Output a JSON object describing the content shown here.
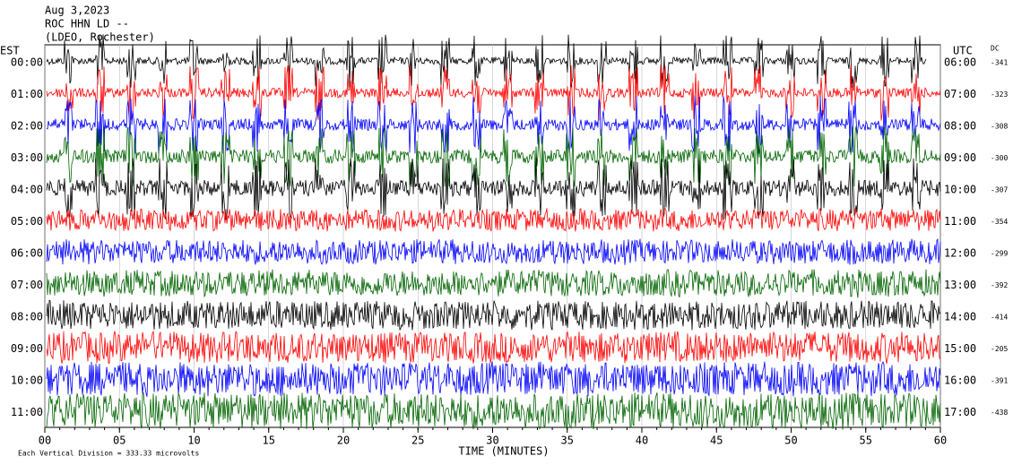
{
  "header": {
    "lines": [
      "Aug 3,2023",
      "ROC HHN LD --",
      "(LDEO, Rochester)"
    ]
  },
  "left_axis": {
    "title": "EST",
    "labels": [
      "00:00",
      "01:00",
      "02:00",
      "03:00",
      "04:00",
      "05:00",
      "06:00",
      "07:00",
      "08:00",
      "09:00",
      "10:00",
      "11:00"
    ]
  },
  "right_axis": {
    "title": "UTC",
    "labels": [
      "06:00",
      "07:00",
      "08:00",
      "09:00",
      "10:00",
      "11:00",
      "12:00",
      "13:00",
      "14:00",
      "15:00",
      "16:00",
      "17:00"
    ]
  },
  "dc": {
    "title": "DC",
    "values": [
      "-341",
      "-323",
      "-308",
      "-300",
      "-307",
      "-354",
      "-299",
      "-392",
      "-414",
      "-205",
      "-391",
      "-438"
    ]
  },
  "x_axis": {
    "title": "TIME (MINUTES)",
    "ticks": [
      "00",
      "05",
      "10",
      "15",
      "20",
      "25",
      "30",
      "35",
      "40",
      "45",
      "50",
      "55",
      "60"
    ]
  },
  "footer": {
    "note": "Each Vertical Division =  333.33 microvolts"
  }
}
